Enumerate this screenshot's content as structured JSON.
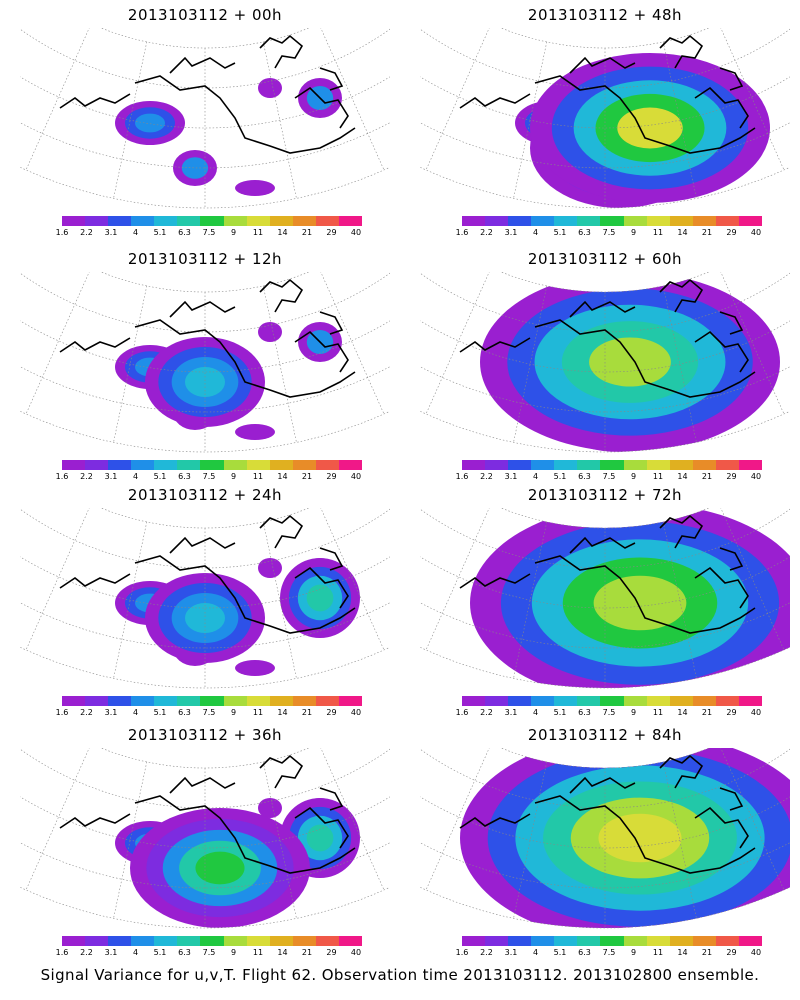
{
  "panels": [
    {
      "title": "2013103112 + 00h",
      "level": 0
    },
    {
      "title": "2013103112 + 48h",
      "level": 4
    },
    {
      "title": "2013103112 + 12h",
      "level": 1
    },
    {
      "title": "2013103112 + 60h",
      "level": 5
    },
    {
      "title": "2013103112 + 24h",
      "level": 2
    },
    {
      "title": "2013103112 + 72h",
      "level": 6
    },
    {
      "title": "2013103112 + 36h",
      "level": 3
    },
    {
      "title": "2013103112 + 84h",
      "level": 7
    }
  ],
  "colorbar": {
    "labels": [
      "1.6",
      "2.2",
      "3.1",
      "4",
      "5.1",
      "6.3",
      "7.5",
      "9",
      "11",
      "14",
      "21",
      "29",
      "40"
    ],
    "colors": [
      "#9a1fd0",
      "#7d2ce0",
      "#2e51e8",
      "#1f8fe8",
      "#20b8d8",
      "#22c8a8",
      "#20c840",
      "#a8dc3c",
      "#d8dc38",
      "#e0b020",
      "#e88c28",
      "#f05848",
      "#f01888"
    ]
  },
  "caption": "Signal Variance for u,v,T. Flight 62. Observation time 2013103112. 2013102800 ensemble."
}
